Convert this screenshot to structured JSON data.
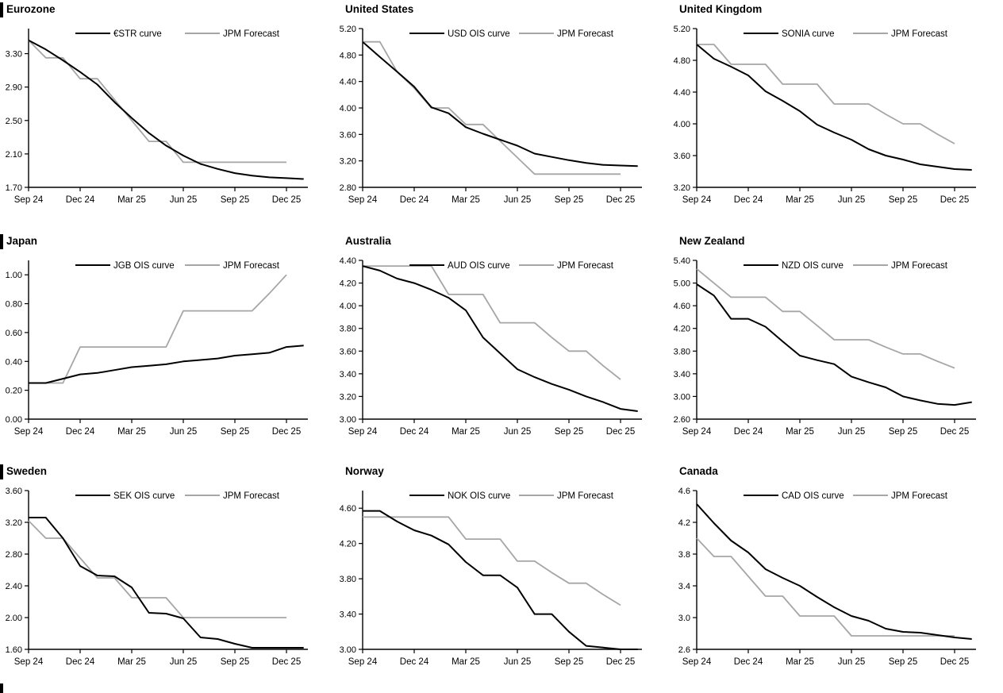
{
  "page": {
    "description": "3x3 grid of central bank policy rate charts comparing market OIS curves with JPM forecasts",
    "background": "#ffffff"
  },
  "colors": {
    "curve": "#000000",
    "forecast": "#a6a6a6"
  },
  "x_tick_labels": [
    "Sep 24",
    "Dec 24",
    "Mar 25",
    "Jun 25",
    "Sep 25",
    "Dec 25"
  ],
  "chart_data": [
    {
      "type": "line",
      "title": "Eurozone",
      "ylim": [
        1.7,
        3.6
      ],
      "yticks": [
        "1.70",
        "2.10",
        "2.50",
        "2.90",
        "3.30"
      ],
      "xticks": [
        "Sep 24",
        "Dec 24",
        "Mar 25",
        "Jun 25",
        "Sep 25",
        "Dec 25"
      ],
      "legend_position": "top",
      "grid": false,
      "series": [
        {
          "name": "€STR curve",
          "color_key": "curve",
          "values": [
            3.46,
            3.35,
            3.22,
            3.08,
            2.93,
            2.72,
            2.53,
            2.35,
            2.2,
            2.08,
            1.98,
            1.92,
            1.87,
            1.84,
            1.82,
            1.81,
            1.8
          ]
        },
        {
          "name": "JPM Forecast",
          "color_key": "forecast",
          "values": [
            3.46,
            3.25,
            3.25,
            3.0,
            3.0,
            2.75,
            2.5,
            2.25,
            2.25,
            2.0,
            2.0,
            2.0,
            2.0,
            2.0,
            2.0,
            2.0
          ]
        }
      ]
    },
    {
      "type": "line",
      "title": "United States",
      "ylim": [
        2.8,
        5.2
      ],
      "yticks": [
        "2.80",
        "3.20",
        "3.60",
        "4.00",
        "4.40",
        "4.80",
        "5.20"
      ],
      "xticks": [
        "Sep 24",
        "Dec 24",
        "Mar 25",
        "Jun 25",
        "Sep 25",
        "Dec 25"
      ],
      "legend_position": "top",
      "grid": false,
      "series": [
        {
          "name": "USD OIS curve",
          "color_key": "curve",
          "values": [
            5.0,
            4.77,
            4.55,
            4.32,
            4.01,
            3.92,
            3.71,
            3.61,
            3.52,
            3.43,
            3.31,
            3.26,
            3.21,
            3.17,
            3.14,
            3.13,
            3.12
          ]
        },
        {
          "name": "JPM Forecast",
          "color_key": "forecast",
          "values": [
            5.0,
            5.0,
            4.55,
            4.3,
            4.0,
            4.0,
            3.75,
            3.75,
            3.5,
            3.25,
            3.0,
            3.0,
            3.0,
            3.0,
            3.0,
            3.0
          ]
        }
      ]
    },
    {
      "type": "line",
      "title": "United Kingdom",
      "ylim": [
        3.2,
        5.2
      ],
      "yticks": [
        "3.20",
        "3.60",
        "4.00",
        "4.40",
        "4.80",
        "5.20"
      ],
      "xticks": [
        "Sep 24",
        "Dec 24",
        "Mar 25",
        "Jun 25",
        "Sep 25",
        "Dec 25"
      ],
      "legend_position": "top",
      "grid": false,
      "series": [
        {
          "name": "SONIA curve",
          "color_key": "curve",
          "values": [
            5.0,
            4.82,
            4.72,
            4.61,
            4.41,
            4.29,
            4.16,
            3.99,
            3.89,
            3.8,
            3.68,
            3.6,
            3.55,
            3.49,
            3.46,
            3.43,
            3.42
          ]
        },
        {
          "name": "JPM Forecast",
          "color_key": "forecast",
          "values": [
            5.0,
            5.0,
            4.75,
            4.75,
            4.75,
            4.5,
            4.5,
            4.5,
            4.25,
            4.25,
            4.25,
            4.12,
            4.0,
            4.0,
            3.87,
            3.75
          ]
        }
      ]
    },
    {
      "type": "line",
      "title": "Japan",
      "ylim": [
        0.0,
        1.1
      ],
      "yticks": [
        "0.00",
        "0.20",
        "0.40",
        "0.60",
        "0.80",
        "1.00"
      ],
      "xticks": [
        "Sep 24",
        "Dec 24",
        "Mar 25",
        "Jun 25",
        "Sep 25",
        "Dec 25"
      ],
      "legend_position": "top",
      "grid": false,
      "series": [
        {
          "name": "JGB OIS curve",
          "color_key": "curve",
          "values": [
            0.25,
            0.25,
            0.28,
            0.31,
            0.32,
            0.34,
            0.36,
            0.37,
            0.38,
            0.4,
            0.41,
            0.42,
            0.44,
            0.45,
            0.46,
            0.5,
            0.51
          ]
        },
        {
          "name": "JPM Forecast",
          "color_key": "forecast",
          "values": [
            0.25,
            0.25,
            0.25,
            0.5,
            0.5,
            0.5,
            0.5,
            0.5,
            0.5,
            0.75,
            0.75,
            0.75,
            0.75,
            0.75,
            0.87,
            1.0
          ]
        }
      ]
    },
    {
      "type": "line",
      "title": "Australia",
      "ylim": [
        3.0,
        4.4
      ],
      "yticks": [
        "3.00",
        "3.20",
        "3.40",
        "3.60",
        "3.80",
        "4.00",
        "4.20",
        "4.40"
      ],
      "xticks": [
        "Sep 24",
        "Dec 24",
        "Mar 25",
        "Jun 25",
        "Sep 25",
        "Dec 25"
      ],
      "legend_position": "top",
      "grid": false,
      "series": [
        {
          "name": "AUD OIS curve",
          "color_key": "curve",
          "values": [
            4.35,
            4.31,
            4.24,
            4.2,
            4.14,
            4.07,
            3.96,
            3.72,
            3.58,
            3.44,
            3.37,
            3.31,
            3.26,
            3.2,
            3.15,
            3.09,
            3.07
          ]
        },
        {
          "name": "JPM Forecast",
          "color_key": "forecast",
          "values": [
            4.35,
            4.35,
            4.35,
            4.35,
            4.35,
            4.1,
            4.1,
            4.1,
            3.85,
            3.85,
            3.85,
            3.72,
            3.6,
            3.6,
            3.47,
            3.35
          ]
        }
      ]
    },
    {
      "type": "line",
      "title": "New Zealand",
      "ylim": [
        2.6,
        5.4
      ],
      "yticks": [
        "2.60",
        "3.00",
        "3.40",
        "3.80",
        "4.20",
        "4.60",
        "5.00",
        "5.40"
      ],
      "xticks": [
        "Sep 24",
        "Dec 24",
        "Mar 25",
        "Jun 25",
        "Sep 25",
        "Dec 25"
      ],
      "legend_position": "top",
      "grid": false,
      "series": [
        {
          "name": "NZD OIS curve",
          "color_key": "curve",
          "values": [
            4.98,
            4.78,
            4.37,
            4.37,
            4.23,
            3.97,
            3.72,
            3.64,
            3.57,
            3.35,
            3.25,
            3.16,
            3.0,
            2.93,
            2.87,
            2.85,
            2.9
          ]
        },
        {
          "name": "JPM Forecast",
          "color_key": "forecast",
          "values": [
            5.25,
            5.0,
            4.75,
            4.75,
            4.75,
            4.5,
            4.5,
            4.25,
            4.0,
            4.0,
            4.0,
            3.87,
            3.75,
            3.75,
            3.62,
            3.5
          ]
        }
      ]
    },
    {
      "type": "line",
      "title": "Sweden",
      "ylim": [
        1.6,
        3.6
      ],
      "yticks": [
        "1.60",
        "2.00",
        "2.40",
        "2.80",
        "3.20",
        "3.60"
      ],
      "xticks": [
        "Sep 24",
        "Dec 24",
        "Mar 25",
        "Jun 25",
        "Sep 25",
        "Dec 25"
      ],
      "legend_position": "top",
      "grid": false,
      "series": [
        {
          "name": "SEK OIS curve",
          "color_key": "curve",
          "values": [
            3.26,
            3.26,
            3.0,
            2.65,
            2.53,
            2.52,
            2.38,
            2.06,
            2.05,
            1.99,
            1.75,
            1.73,
            1.67,
            1.62,
            1.62,
            1.62,
            1.62
          ]
        },
        {
          "name": "JPM Forecast",
          "color_key": "forecast",
          "values": [
            3.22,
            3.0,
            3.0,
            2.75,
            2.5,
            2.5,
            2.25,
            2.25,
            2.25,
            2.0,
            2.0,
            2.0,
            2.0,
            2.0,
            2.0,
            2.0
          ]
        }
      ]
    },
    {
      "type": "line",
      "title": "Norway",
      "ylim": [
        3.0,
        4.8
      ],
      "yticks": [
        "3.00",
        "3.40",
        "3.80",
        "4.20",
        "4.60"
      ],
      "xticks": [
        "Sep 24",
        "Dec 24",
        "Mar 25",
        "Jun 25",
        "Sep 25",
        "Dec 25"
      ],
      "legend_position": "top",
      "grid": false,
      "series": [
        {
          "name": "NOK OIS curve",
          "color_key": "curve",
          "values": [
            4.57,
            4.57,
            4.45,
            4.35,
            4.29,
            4.19,
            3.99,
            3.84,
            3.84,
            3.7,
            3.4,
            3.4,
            3.2,
            3.04,
            3.02,
            3.0,
            3.0
          ]
        },
        {
          "name": "JPM Forecast",
          "color_key": "forecast",
          "values": [
            4.5,
            4.5,
            4.5,
            4.5,
            4.5,
            4.5,
            4.25,
            4.25,
            4.25,
            4.0,
            4.0,
            3.87,
            3.75,
            3.75,
            3.62,
            3.5
          ]
        }
      ]
    },
    {
      "type": "line",
      "title": "Canada",
      "ylim": [
        2.6,
        4.6
      ],
      "yticks": [
        "2.6",
        "3.0",
        "3.4",
        "3.8",
        "4.2",
        "4.6"
      ],
      "xticks": [
        "Sep 24",
        "Dec 24",
        "Mar 25",
        "Jun 25",
        "Sep 25",
        "Dec 25"
      ],
      "legend_position": "top",
      "grid": false,
      "series": [
        {
          "name": "CAD OIS curve",
          "color_key": "curve",
          "values": [
            4.43,
            4.19,
            3.97,
            3.82,
            3.61,
            3.5,
            3.4,
            3.26,
            3.13,
            3.02,
            2.96,
            2.86,
            2.82,
            2.81,
            2.78,
            2.75,
            2.73
          ]
        },
        {
          "name": "JPM Forecast",
          "color_key": "forecast",
          "values": [
            4.0,
            3.77,
            3.77,
            3.52,
            3.27,
            3.27,
            3.02,
            3.02,
            3.02,
            2.77,
            2.77,
            2.77,
            2.77,
            2.77,
            2.77,
            2.77
          ]
        }
      ]
    }
  ]
}
